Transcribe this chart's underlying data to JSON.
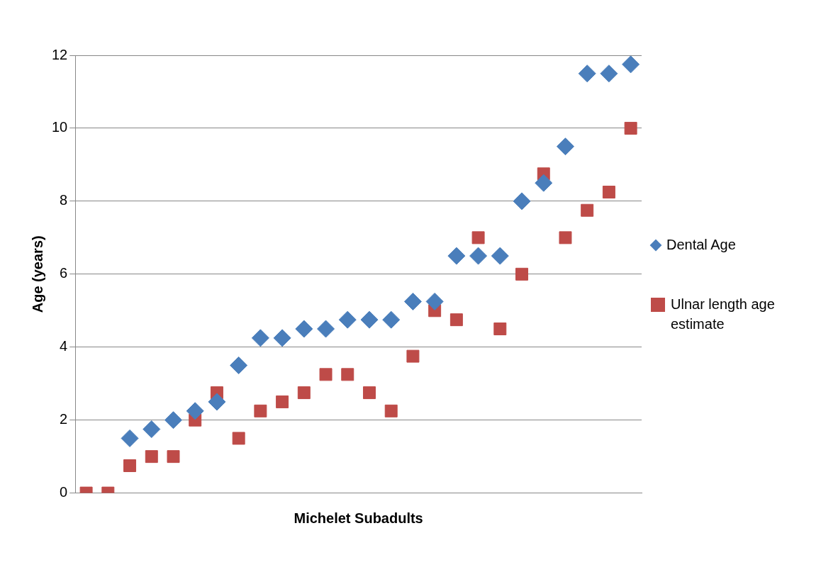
{
  "chart_data": {
    "type": "scatter",
    "xlabel": "Michelet Subadults",
    "ylabel": "Age (years)",
    "categories": [
      null,
      null,
      null,
      null,
      null,
      null,
      null,
      null,
      null,
      null,
      null,
      null,
      null,
      null,
      null,
      null,
      null,
      null,
      null,
      null,
      null,
      null,
      null,
      null,
      null,
      null
    ],
    "ylim": [
      0,
      12
    ],
    "yticks": [
      0,
      2,
      4,
      6,
      8,
      10,
      12
    ],
    "grid": "y",
    "legend": "right",
    "series": [
      {
        "name": "Dental Age",
        "color": "#4a7ebb",
        "marker": "diamond",
        "values": [
          null,
          null,
          1.5,
          1.75,
          2,
          2.25,
          2.5,
          3.5,
          4.25,
          4.25,
          4.5,
          4.5,
          4.75,
          4.75,
          4.75,
          5.25,
          5.25,
          6.5,
          6.5,
          6.5,
          8,
          8.5,
          9.5,
          11.5,
          11.5,
          11.75
        ]
      },
      {
        "name": "Ulnar length age estimate",
        "color": "#be4b48",
        "marker": "square",
        "values": [
          0,
          0,
          0.75,
          1,
          1,
          2,
          2.75,
          1.5,
          2.25,
          2.5,
          2.75,
          3.25,
          3.25,
          2.75,
          2.25,
          3.75,
          5,
          4.75,
          7,
          4.5,
          6,
          8.75,
          7,
          7.75,
          8.25,
          10
        ]
      }
    ]
  }
}
